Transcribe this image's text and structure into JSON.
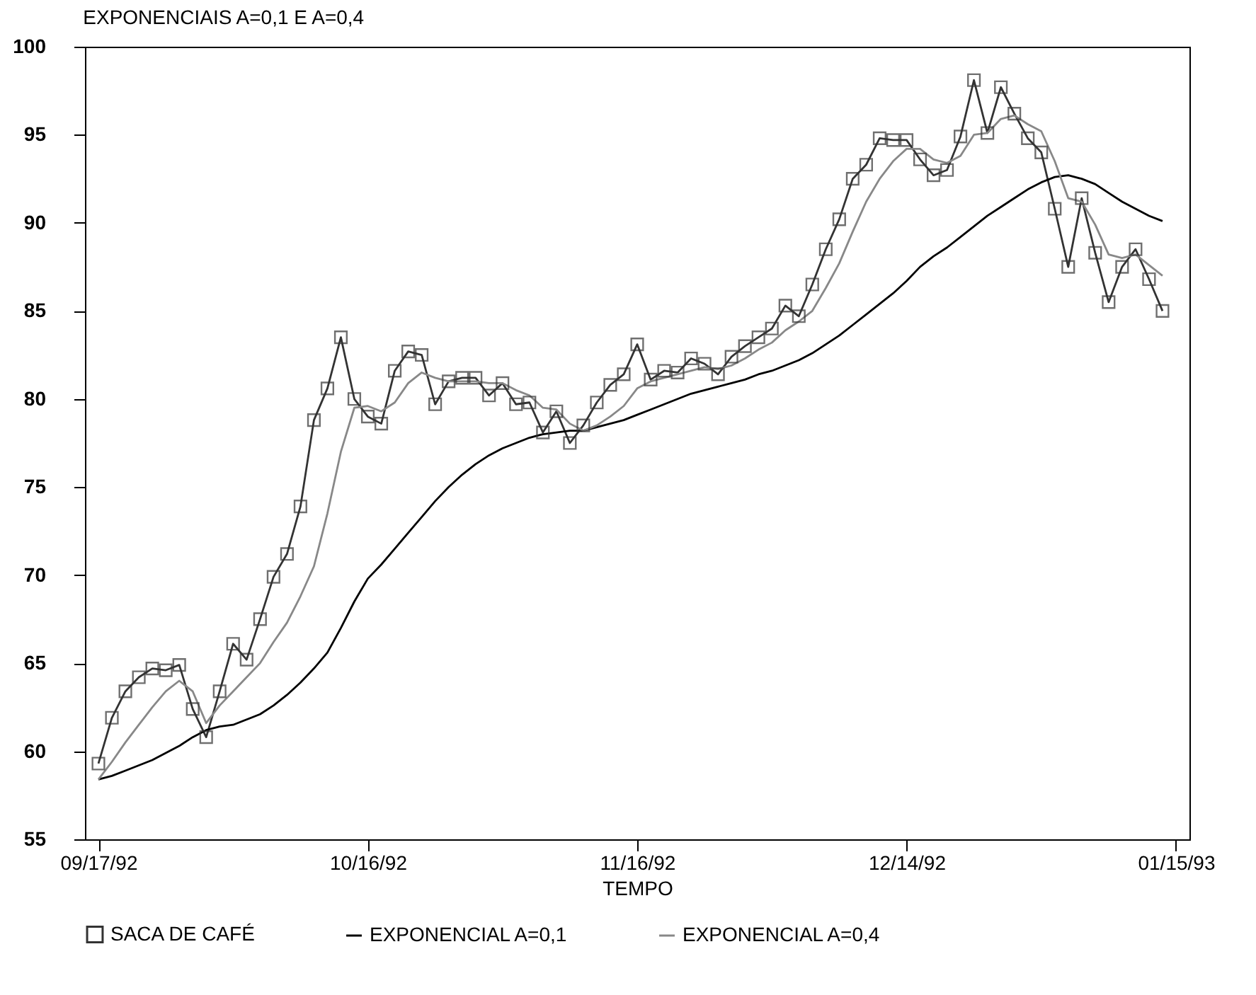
{
  "chart_data": {
    "type": "line",
    "title": "EXPONENCIAIS A=0,1 E A=0,4",
    "xlabel": "TEMPO",
    "categories": [
      "09/17/92",
      null,
      null,
      null,
      null,
      null,
      null,
      null,
      null,
      null,
      null,
      null,
      null,
      null,
      null,
      null,
      null,
      null,
      null,
      null,
      "10/16/92",
      null,
      null,
      null,
      null,
      null,
      null,
      null,
      null,
      null,
      null,
      null,
      null,
      null,
      null,
      null,
      null,
      null,
      null,
      null,
      "11/16/92",
      null,
      null,
      null,
      null,
      null,
      null,
      null,
      null,
      null,
      null,
      null,
      null,
      null,
      null,
      null,
      null,
      null,
      null,
      null,
      "12/14/92",
      null,
      null,
      null,
      null,
      null,
      null,
      null,
      null,
      null,
      null,
      null,
      null,
      null,
      null,
      null,
      null,
      null,
      null,
      null,
      "01/15/93"
    ],
    "series": [
      {
        "name": "SACA DE CAFÉ",
        "color": "#333333",
        "marker": "square",
        "values": [
          59.3,
          61.9,
          63.4,
          64.2,
          64.7,
          64.6,
          64.9,
          62.4,
          60.8,
          63.4,
          66.1,
          65.2,
          67.5,
          69.9,
          71.2,
          73.9,
          78.8,
          80.6,
          83.5,
          80.0,
          79.0,
          78.6,
          81.6,
          82.7,
          82.5,
          79.7,
          81.0,
          81.2,
          81.2,
          80.2,
          80.9,
          79.7,
          79.8,
          78.1,
          79.3,
          77.5,
          78.5,
          79.8,
          80.8,
          81.4,
          83.1,
          81.1,
          81.6,
          81.5,
          82.3,
          82.0,
          81.4,
          82.4,
          83.0,
          83.5,
          84.0,
          85.3,
          84.7,
          86.5,
          88.5,
          90.2,
          92.5,
          93.3,
          94.8,
          94.7,
          94.7,
          93.6,
          92.7,
          93.0,
          94.9,
          98.1,
          95.1,
          97.7,
          96.2,
          94.8,
          94.0,
          90.8,
          87.5,
          91.4,
          88.3,
          85.5,
          87.5,
          88.5,
          86.8,
          85.0,
          null
        ]
      },
      {
        "name": "EXPONENCIAL A=0,1",
        "color": "#000000",
        "marker": "none",
        "values": [
          58.4,
          58.6,
          58.9,
          59.2,
          59.5,
          59.9,
          60.3,
          60.8,
          61.2,
          61.4,
          61.5,
          61.8,
          62.1,
          62.6,
          63.2,
          63.9,
          64.7,
          65.6,
          67.0,
          68.5,
          69.8,
          70.6,
          71.5,
          72.4,
          73.3,
          74.2,
          75.0,
          75.7,
          76.3,
          76.8,
          77.2,
          77.5,
          77.8,
          78.0,
          78.1,
          78.2,
          78.2,
          78.4,
          78.6,
          78.8,
          79.1,
          79.4,
          79.7,
          80.0,
          80.3,
          80.5,
          80.7,
          80.9,
          81.1,
          81.4,
          81.6,
          81.9,
          82.2,
          82.6,
          83.1,
          83.6,
          84.2,
          84.8,
          85.4,
          86.0,
          86.7,
          87.5,
          88.1,
          88.6,
          89.2,
          89.8,
          90.4,
          90.9,
          91.4,
          91.9,
          92.3,
          92.6,
          92.7,
          92.5,
          92.2,
          91.7,
          91.2,
          90.8,
          90.4,
          90.1,
          null
        ]
      },
      {
        "name": "EXPONENCIAL A=0,4",
        "color": "#888888",
        "marker": "none",
        "values": [
          58.4,
          59.4,
          60.5,
          61.5,
          62.5,
          63.4,
          64.0,
          63.4,
          61.6,
          62.6,
          63.4,
          64.2,
          65.0,
          66.2,
          67.3,
          68.8,
          70.5,
          73.5,
          77.0,
          79.5,
          79.6,
          79.3,
          79.8,
          80.9,
          81.5,
          81.2,
          81.0,
          81.0,
          81.0,
          80.9,
          80.9,
          80.5,
          80.2,
          79.5,
          79.4,
          78.6,
          78.2,
          78.5,
          79.0,
          79.6,
          80.6,
          81.0,
          81.2,
          81.4,
          81.6,
          81.8,
          81.7,
          81.9,
          82.3,
          82.8,
          83.2,
          83.9,
          84.4,
          85.0,
          86.3,
          87.7,
          89.5,
          91.2,
          92.5,
          93.5,
          94.2,
          94.2,
          93.6,
          93.4,
          93.8,
          95.0,
          95.1,
          95.9,
          96.1,
          95.6,
          95.2,
          93.5,
          91.4,
          91.2,
          89.9,
          88.2,
          88.0,
          88.2,
          87.6,
          87.0,
          null
        ]
      }
    ],
    "ylim": [
      55,
      100
    ],
    "yticks": [
      55,
      60,
      65,
      70,
      75,
      80,
      85,
      90,
      95,
      100
    ],
    "grid": false,
    "legend": "bottom"
  }
}
